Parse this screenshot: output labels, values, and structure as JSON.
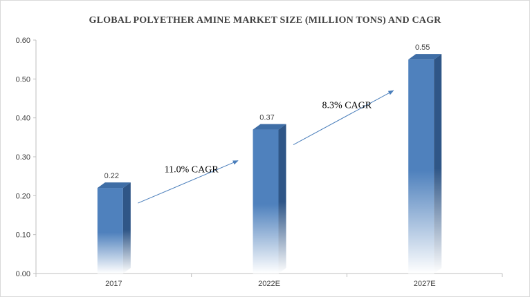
{
  "chart_data": {
    "type": "bar",
    "title": "GLOBAL POLYETHER AMINE MARKET SIZE (MILLION TONS) AND CAGR",
    "categories": [
      "2017",
      "2022E",
      "2027E"
    ],
    "values": [
      0.22,
      0.37,
      0.55
    ],
    "data_labels": [
      "0.22",
      "0.37",
      "0.55"
    ],
    "ylim": [
      0,
      0.6
    ],
    "yticks": [
      "0.00",
      "0.10",
      "0.20",
      "0.30",
      "0.40",
      "0.50",
      "0.60"
    ],
    "xlabel": "",
    "ylabel": "",
    "grid": false,
    "legend": "none",
    "bar_color": "#4f81bd",
    "bar_side_color": "#2f5687",
    "bar_top_color": "#3f6ea6",
    "annotations": [
      {
        "text": "11.0% CAGR",
        "from_category": "2017",
        "to_category": "2022E"
      },
      {
        "text": "8.3% CAGR",
        "from_category": "2022E",
        "to_category": "2027E"
      }
    ],
    "arrow_color": "#4a7ebb"
  }
}
